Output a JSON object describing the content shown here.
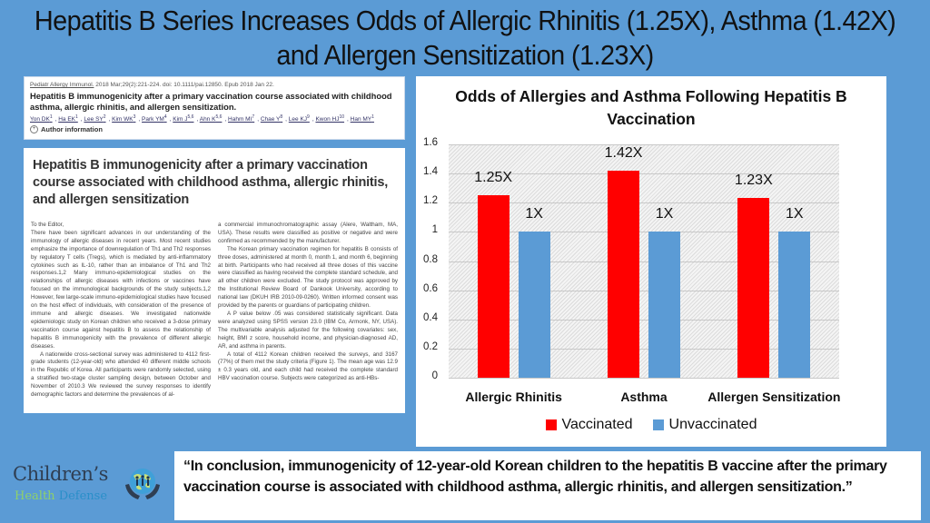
{
  "slide": {
    "title": "Hepatitis B Series Increases Odds of Allergic Rhinitis (1.25X), Asthma (1.42X) and Allergen Sensitization (1.23X)",
    "background_color": "#5b9bd5"
  },
  "abstract": {
    "journal": "Pediatr Allergy Immunol.",
    "citation": " 2018 Mar;29(2):221-224. doi: 10.1111/pai.12850. Epub 2018 Jan 22.",
    "title": "Hepatitis B immunogenicity after a primary vaccination course associated with childhood asthma, allergic rhinitis, and allergen sensitization.",
    "authors": [
      {
        "name": "Yon DK",
        "sup": "1"
      },
      {
        "name": "Ha EK",
        "sup": "1"
      },
      {
        "name": "Lee SY",
        "sup": "2"
      },
      {
        "name": "Kim WK",
        "sup": "3"
      },
      {
        "name": "Park YM",
        "sup": "4"
      },
      {
        "name": "Kim J",
        "sup": "5,6"
      },
      {
        "name": "Ahn K",
        "sup": "5,6"
      },
      {
        "name": "Hahm MI",
        "sup": "7"
      },
      {
        "name": "Chae Y",
        "sup": "8"
      },
      {
        "name": "Lee KJ",
        "sup": "9"
      },
      {
        "name": "Kwon HJ",
        "sup": "10"
      },
      {
        "name": "Han MY",
        "sup": "1"
      }
    ],
    "author_info_label": "Author information"
  },
  "paper": {
    "title": "Hepatitis B immunogenicity after a primary vaccination course associated with childhood asthma, allergic rhinitis, and allergen sensitization",
    "col1": [
      "To the Editor,",
      "There have been significant advances in our understanding of the immunology of allergic diseases in recent years. Most recent studies emphasize the importance of downregulation of Th1 and Th2 responses by regulatory T cells (Tregs), which is mediated by anti-inflammatory cytokines such as IL-10, rather than an imbalance of Th1 and Th2 responses.1,2 Many immuno-epidemiological studies on the relationships of allergic diseases with infections or vaccines have focused on the immunological backgrounds of the study subjects.1,2 However, few large-scale immuno-epidemiological studies have focused on the host effect of individuals, with consideration of the presence of immune and allergic diseases. We investigated nationwide epidemiologic study on Korean children who received a 3-dose primary vaccination course against hepatitis B to assess the relationship of hepatitis B immunogenicity with the prevalence of different allergic diseases.",
      "A nationwide cross-sectional survey was administered to 4112 first-grade students (12-year-old) who attended 40 different middle schools in the Republic of Korea. All participants were randomly selected, using a stratified two-stage cluster sampling design, between October and November of 2010.3 We reviewed the survey responses to identify demographic factors and determine the prevalences of al-"
    ],
    "col2": [
      "a commercial immunochromatographic assay (Alere, Waltham, MA, USA). These results were classified as positive or negative and were confirmed as recommended by the manufacturer.",
      "The Korean primary vaccination regimen for hepatitis B consists of three doses, administered at month 0, month 1, and month 6, beginning at birth. Participants who had received all three doses of this vaccine were classified as having received the complete standard schedule, and all other children were excluded. The study protocol was approved by the Institutional Review Board of Dankook University, according to national law (DKUH IRB 2010-09-0260). Written informed consent was provided by the parents or guardians of participating children.",
      "A P value below .05 was considered statistically significant. Data were analyzed using SPSS version 23.0 (IBM Co, Armonk, NY, USA). The multivariable analysis adjusted for the following covariates: sex, height, BMI z score, household income, and physician-diagnosed AD, AR, and asthma in parents.",
      "A total of 4112 Korean children received the surveys, and 3167 (77%) of them met the study criteria (Figure 1). The mean age was 12.9 ± 0.3 years old, and each child had received the complete standard HBV vaccination course. Subjects were categorized as anti-HBs-"
    ]
  },
  "chart_data": {
    "type": "bar",
    "title": "Odds of Allergies and Asthma Following Hepatitis B Vaccination",
    "categories": [
      "Allergic Rhinitis",
      "Asthma",
      "Allergen Sensitization"
    ],
    "series": [
      {
        "name": "Vaccinated",
        "color": "#ff0000",
        "values": [
          1.25,
          1.42,
          1.23
        ],
        "labels": [
          "1.25X",
          "1.42X",
          "1.23X"
        ]
      },
      {
        "name": "Unvaccinated",
        "color": "#5b9bd5",
        "values": [
          1,
          1,
          1
        ],
        "labels": [
          "1X",
          "1X",
          "1X"
        ]
      }
    ],
    "xlabel": "",
    "ylabel": "",
    "ylim": [
      0,
      1.6
    ],
    "yticks": [
      "0",
      "0.2",
      "0.4",
      "0.6",
      "0.8",
      "1",
      "1.2",
      "1.4",
      "1.6"
    ],
    "grid": true,
    "legend_position": "bottom"
  },
  "quote": {
    "text": "“In conclusion, immunogenicity of 12-year-old Korean children to the hepatitis B vaccine after the primary vaccination course is associated with childhood asthma, allergic rhinitis, and allergen sensitization.”"
  },
  "logo": {
    "line1": "Children’s",
    "line2a": "Health",
    "line2b": "Defense"
  }
}
